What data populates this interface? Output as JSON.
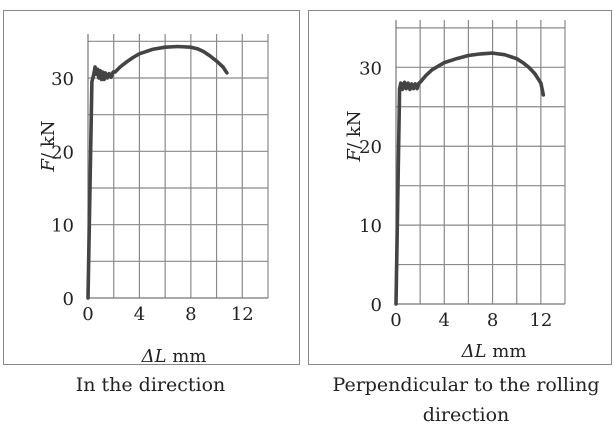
{
  "chart_data": [
    {
      "type": "line",
      "caption": "In the direction",
      "xlabel_symbol": "ΔL",
      "xlabel_unit": " mm",
      "ylabel_symbol": "F",
      "ylabel_unit": "/ kN",
      "xlim": [
        0,
        14
      ],
      "ylim": [
        0,
        36
      ],
      "xticks": [
        0,
        4,
        8,
        12
      ],
      "yticks": [
        0,
        10,
        20,
        30
      ],
      "x_grid_step": 2,
      "y_grid_step": 5,
      "grid": true,
      "series": [
        {
          "x": [
            0,
            0.3,
            0.45,
            0.55,
            0.65,
            0.75,
            0.85,
            0.95,
            1.05,
            1.15,
            1.25,
            1.35,
            1.5,
            1.65,
            1.8,
            1.95,
            2.1,
            2.5,
            3,
            3.5,
            4,
            5,
            6,
            7,
            8,
            8.5,
            9,
            9.5,
            10,
            10.5,
            10.8
          ],
          "y": [
            0,
            29.5,
            30.5,
            31.5,
            30.5,
            31.2,
            30.0,
            31.0,
            29.8,
            30.8,
            29.8,
            30.7,
            30.0,
            30.6,
            30.1,
            30.8,
            30.8,
            31.5,
            32.2,
            32.8,
            33.3,
            33.9,
            34.2,
            34.3,
            34.2,
            34.0,
            33.6,
            33.0,
            32.3,
            31.5,
            30.7
          ]
        }
      ]
    },
    {
      "type": "line",
      "caption": "Perpendicular to the rolling direction",
      "xlabel_symbol": "ΔL",
      "xlabel_unit": " mm",
      "ylabel_symbol": "F",
      "ylabel_unit": "/ kN",
      "xlim": [
        0,
        14
      ],
      "ylim": [
        0,
        36
      ],
      "xticks": [
        0,
        4,
        8,
        12
      ],
      "yticks": [
        0,
        10,
        20,
        30
      ],
      "x_grid_step": 2,
      "y_grid_step": 5,
      "grid": true,
      "series": [
        {
          "x": [
            0,
            0.3,
            0.4,
            0.55,
            0.7,
            0.85,
            1.0,
            1.15,
            1.3,
            1.45,
            1.6,
            1.75,
            1.9,
            2.0,
            2.5,
            3,
            4,
            5,
            6,
            7,
            8,
            9,
            10,
            10.5,
            11,
            11.5,
            12,
            12.2
          ],
          "y": [
            0,
            27.3,
            28.0,
            27.2,
            28.1,
            27.3,
            28.0,
            27.2,
            27.9,
            27.3,
            27.9,
            27.3,
            28.0,
            28.1,
            29.0,
            29.7,
            30.6,
            31.1,
            31.5,
            31.7,
            31.8,
            31.6,
            31.1,
            30.6,
            30.0,
            29.2,
            28.0,
            26.5
          ]
        }
      ]
    }
  ]
}
